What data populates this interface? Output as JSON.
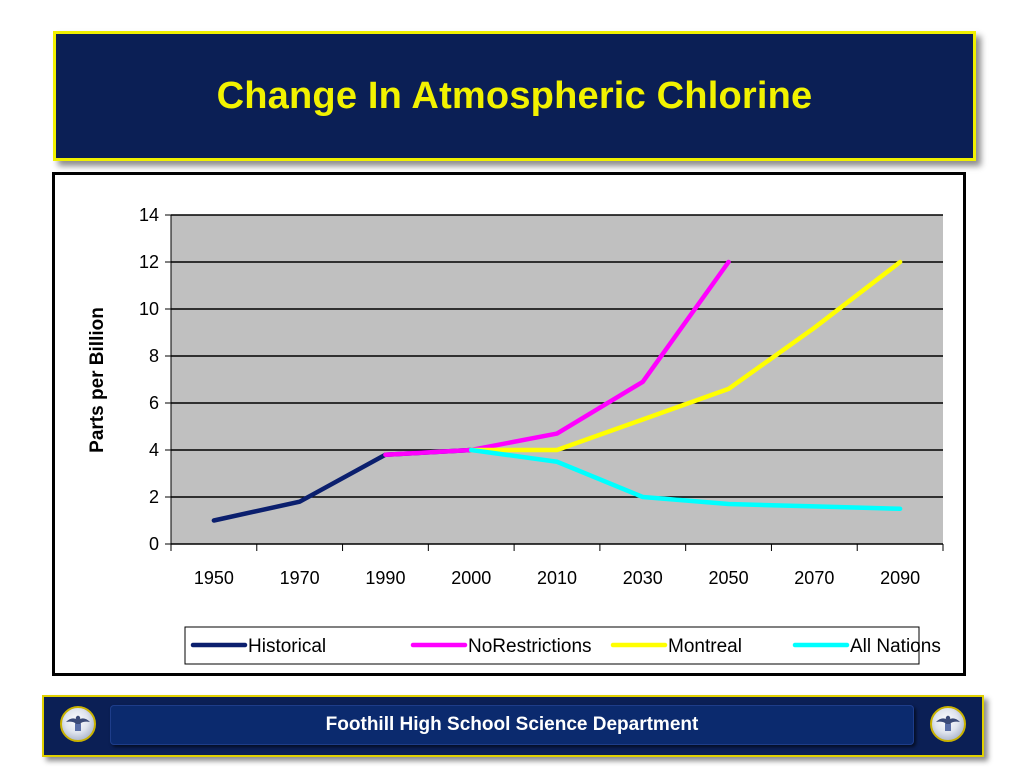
{
  "slide": {
    "title": "Change In Atmospheric Chlorine",
    "footer": "Foothill High School Science Department",
    "colors": {
      "title_bg": "#0b1f55",
      "title_text": "#f2f200",
      "footer_bg": "#0b1f55",
      "plot_bg": "#c0c0c0"
    },
    "logo_icon": "school-seal-icon"
  },
  "chart_data": {
    "type": "line",
    "ylabel": "Parts per Billion",
    "xlabel": "",
    "categories": [
      "1950",
      "1970",
      "1990",
      "2000",
      "2010",
      "2030",
      "2050",
      "2070",
      "2090"
    ],
    "ylim": [
      0,
      14
    ],
    "yticks": [
      "0",
      "2",
      "4",
      "6",
      "8",
      "10",
      "12",
      "14"
    ],
    "grid": true,
    "legend": "bottom",
    "series": [
      {
        "name": "Historical",
        "color": "#0b1f6e",
        "values": [
          1.0,
          1.8,
          3.8,
          4.0,
          null,
          null,
          null,
          null,
          null
        ]
      },
      {
        "name": "NoRestrictions",
        "color": "#ff00ff",
        "values": [
          null,
          null,
          3.8,
          4.0,
          4.7,
          6.9,
          12.0,
          null,
          null
        ]
      },
      {
        "name": "Montreal",
        "color": "#ffff00",
        "values": [
          null,
          null,
          null,
          4.0,
          4.0,
          5.3,
          6.6,
          9.2,
          12.0
        ]
      },
      {
        "name": "All Nations",
        "color": "#00ffff",
        "values": [
          null,
          null,
          null,
          4.0,
          3.5,
          2.0,
          1.7,
          1.6,
          1.5
        ]
      }
    ]
  }
}
